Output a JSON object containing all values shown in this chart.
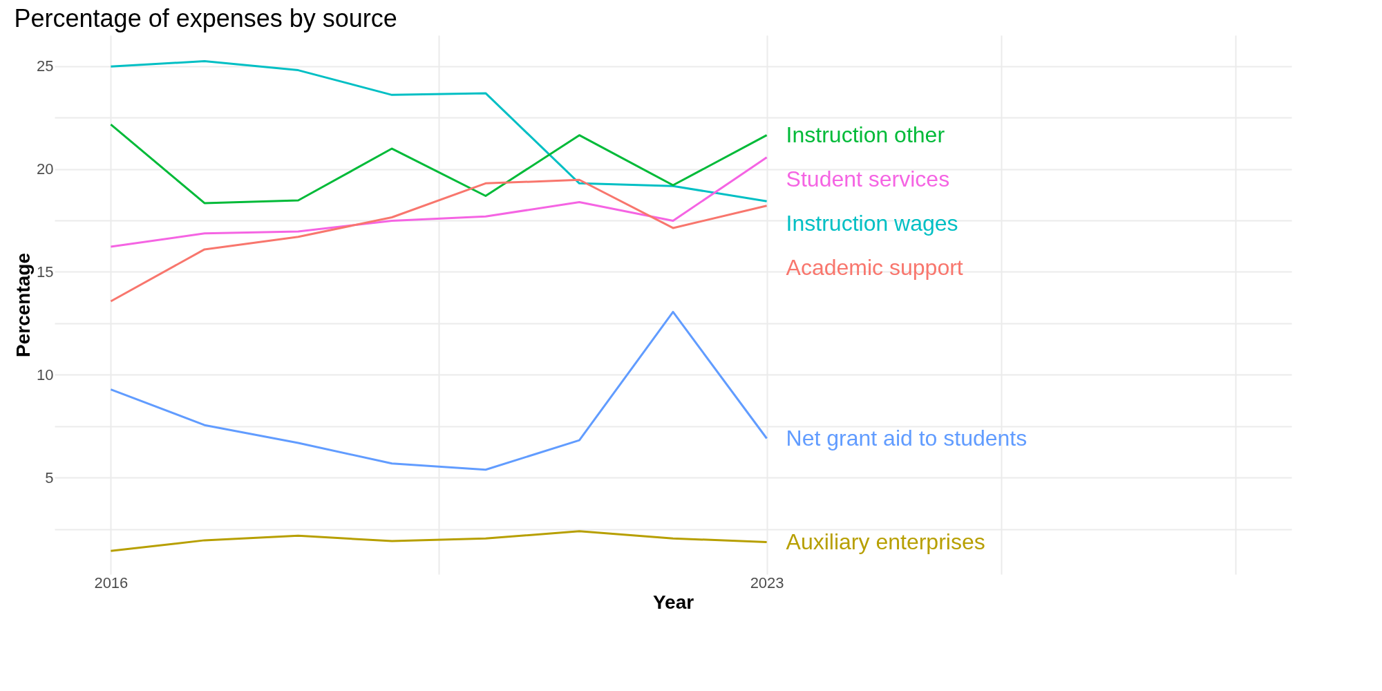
{
  "chart_data": {
    "type": "line",
    "title": "Percentage of expenses by source",
    "xlabel": "Year",
    "ylabel": "Percentage",
    "x": [
      2016,
      2017,
      2018,
      2019,
      2020,
      2021,
      2022,
      2023
    ],
    "series": [
      {
        "name": "Instruction wages",
        "color": "#00bfc4",
        "values": [
          24.98,
          25.24,
          24.8,
          23.6,
          23.68,
          19.3,
          19.17,
          18.43
        ]
      },
      {
        "name": "Instruction other",
        "color": "#00ba38",
        "values": [
          22.16,
          18.34,
          18.47,
          20.99,
          18.69,
          21.64,
          19.21,
          21.64
        ]
      },
      {
        "name": "Student services",
        "color": "#f564e3",
        "values": [
          16.22,
          16.87,
          16.96,
          17.48,
          17.69,
          18.39,
          17.48,
          20.56
        ]
      },
      {
        "name": "Academic support",
        "color": "#f8766d",
        "values": [
          13.57,
          16.09,
          16.7,
          17.65,
          19.3,
          19.47,
          17.13,
          18.21
        ]
      },
      {
        "name": "Net grant aid to students",
        "color": "#619cff",
        "values": [
          9.28,
          7.55,
          6.68,
          5.68,
          5.38,
          6.81,
          13.05,
          6.9
        ]
      },
      {
        "name": "Auxiliary enterprises",
        "color": "#b79f00",
        "values": [
          1.43,
          1.95,
          2.17,
          1.91,
          2.04,
          2.39,
          2.04,
          1.86
        ]
      }
    ],
    "xlim": [
      2015.4,
      2028.6
    ],
    "xticks": [
      2016,
      {
        "value": 2019.5,
        "label": null
      },
      2023,
      {
        "value": 2025.5,
        "label": null
      },
      {
        "value": 2028,
        "label": null
      }
    ],
    "ylim": [
      0.3,
      26.5
    ],
    "yticks": [
      {
        "value": 2.5,
        "label": null
      },
      5,
      {
        "value": 7.5,
        "label": null
      },
      10,
      {
        "value": 12.5,
        "label": null
      },
      15,
      {
        "value": 17.5,
        "label": null
      },
      20,
      {
        "value": 22.5,
        "label": null
      },
      25
    ],
    "grid": true,
    "marker": "none",
    "line_style": "solid"
  }
}
